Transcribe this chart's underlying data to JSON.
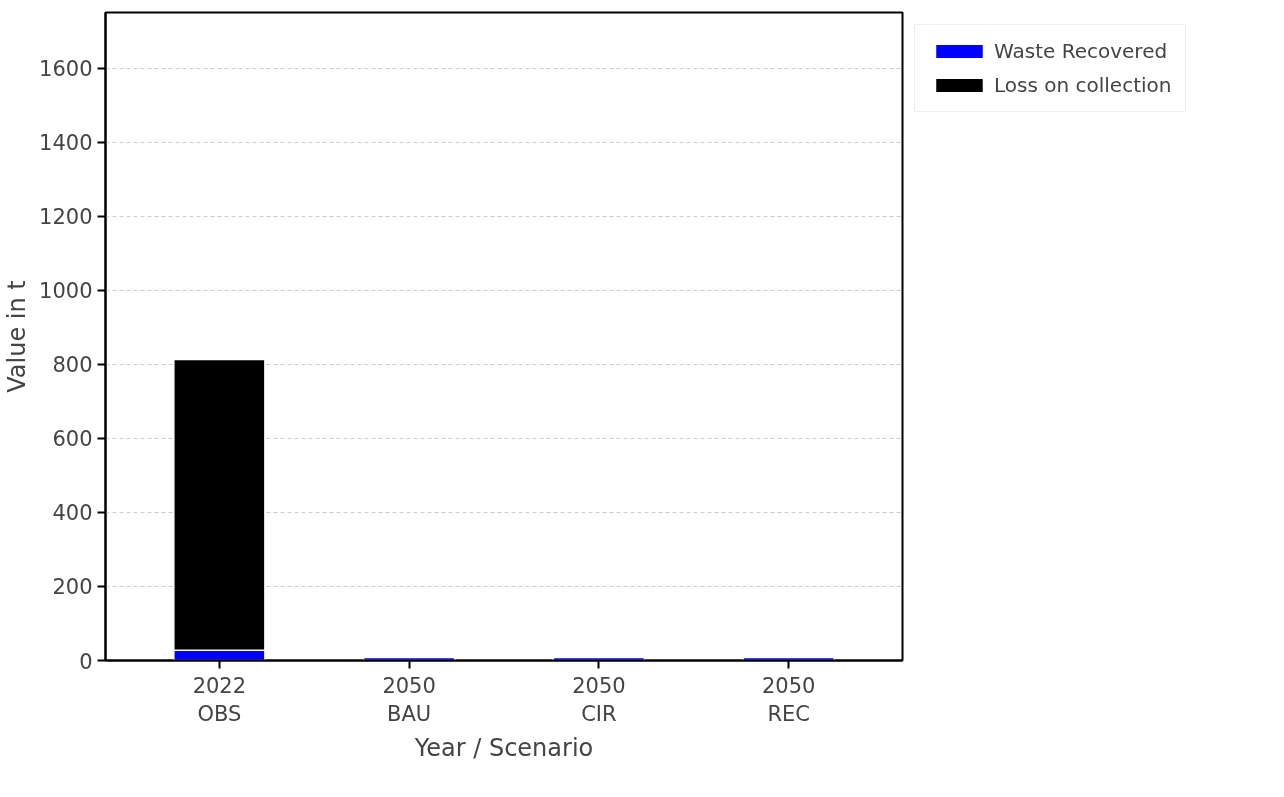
{
  "chart_data": {
    "type": "bar",
    "stacked": true,
    "xlabel": "Year / Scenario",
    "ylabel": "Value in t",
    "categories": [
      "2022\nOBS",
      "2050\nBAU",
      "2050\nCIR",
      "2050\nREC"
    ],
    "series": [
      {
        "name": "Waste Recovered",
        "color": "#0000ff",
        "values": [
          28,
          8,
          8,
          8
        ]
      },
      {
        "name": "Loss on collection",
        "color": "#000000",
        "values": [
          785,
          null,
          null,
          null
        ]
      }
    ],
    "ylim": [
      0,
      1750
    ],
    "yticks": [
      0,
      200,
      400,
      600,
      800,
      1000,
      1200,
      1400,
      1600
    ],
    "grid": "y",
    "legend": "top right"
  }
}
